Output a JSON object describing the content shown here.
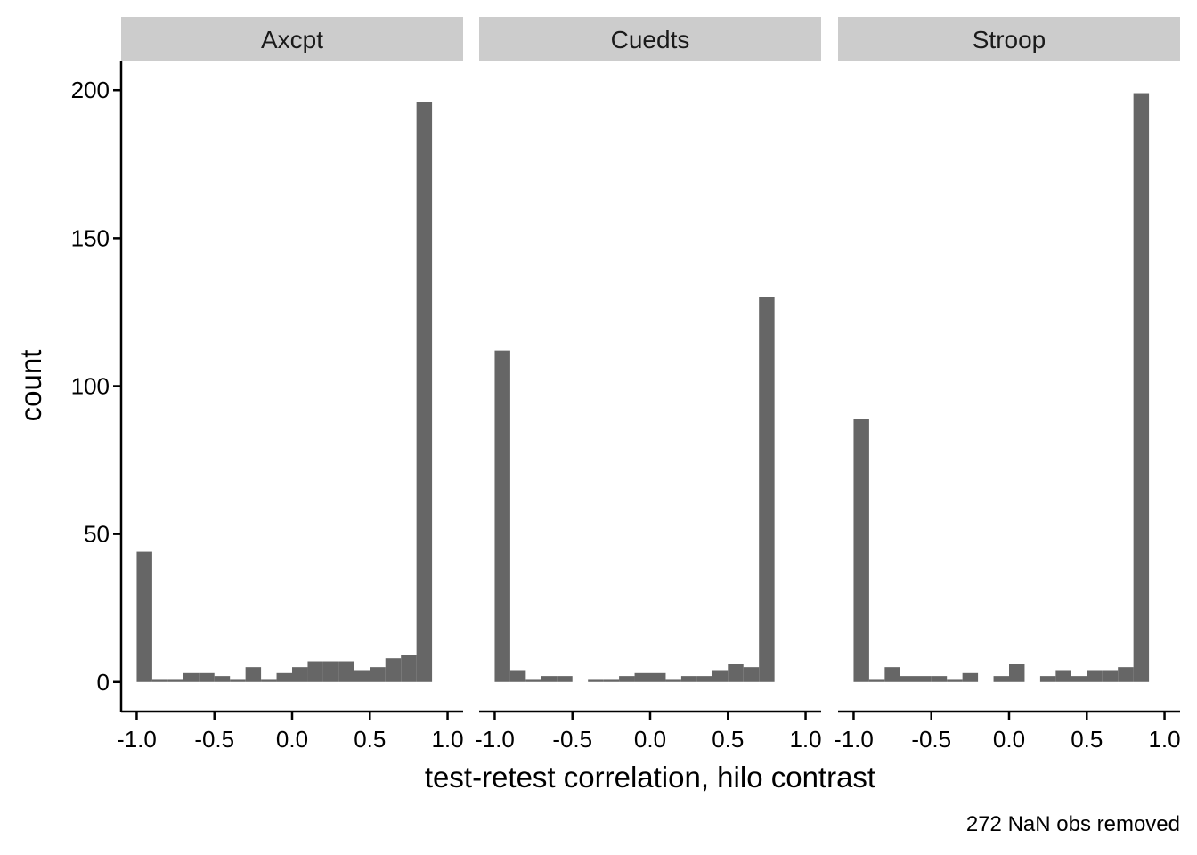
{
  "chart_data": {
    "type": "bar",
    "chart_kind": "faceted histogram",
    "xlabel": "test-retest correlation, hilo contrast",
    "ylabel": "count",
    "caption": "272 NaN obs removed",
    "xlim": [
      -1.1,
      1.1
    ],
    "ylim": [
      -10,
      210
    ],
    "x_ticks": [
      "-1.0",
      "-0.5",
      "0.0",
      "0.5",
      "1.0"
    ],
    "y_ticks": [
      "0",
      "50",
      "100",
      "150",
      "200"
    ],
    "bar_color": "#666666",
    "strip_color": "#cccccc",
    "bin_width": 0.1,
    "bin_centers": [
      -0.95,
      -0.85,
      -0.75,
      -0.65,
      -0.55,
      -0.45,
      -0.35,
      -0.25,
      -0.15,
      -0.05,
      0.05,
      0.15,
      0.25,
      0.35,
      0.45,
      0.55,
      0.65,
      0.75,
      0.85,
      0.95
    ],
    "facets": [
      {
        "name": "Axcpt",
        "counts": [
          44,
          1,
          1,
          3,
          3,
          2,
          1,
          5,
          1,
          3,
          5,
          7,
          7,
          7,
          4,
          5,
          8,
          9,
          196,
          0
        ]
      },
      {
        "name": "Cuedts",
        "counts": [
          112,
          4,
          1,
          2,
          2,
          0,
          1,
          1,
          2,
          3,
          3,
          1,
          2,
          2,
          4,
          6,
          5,
          130,
          0,
          0
        ]
      },
      {
        "name": "Stroop",
        "counts": [
          89,
          1,
          5,
          2,
          2,
          2,
          1,
          3,
          0,
          2,
          6,
          0,
          2,
          4,
          2,
          4,
          4,
          5,
          199,
          0
        ]
      }
    ]
  }
}
